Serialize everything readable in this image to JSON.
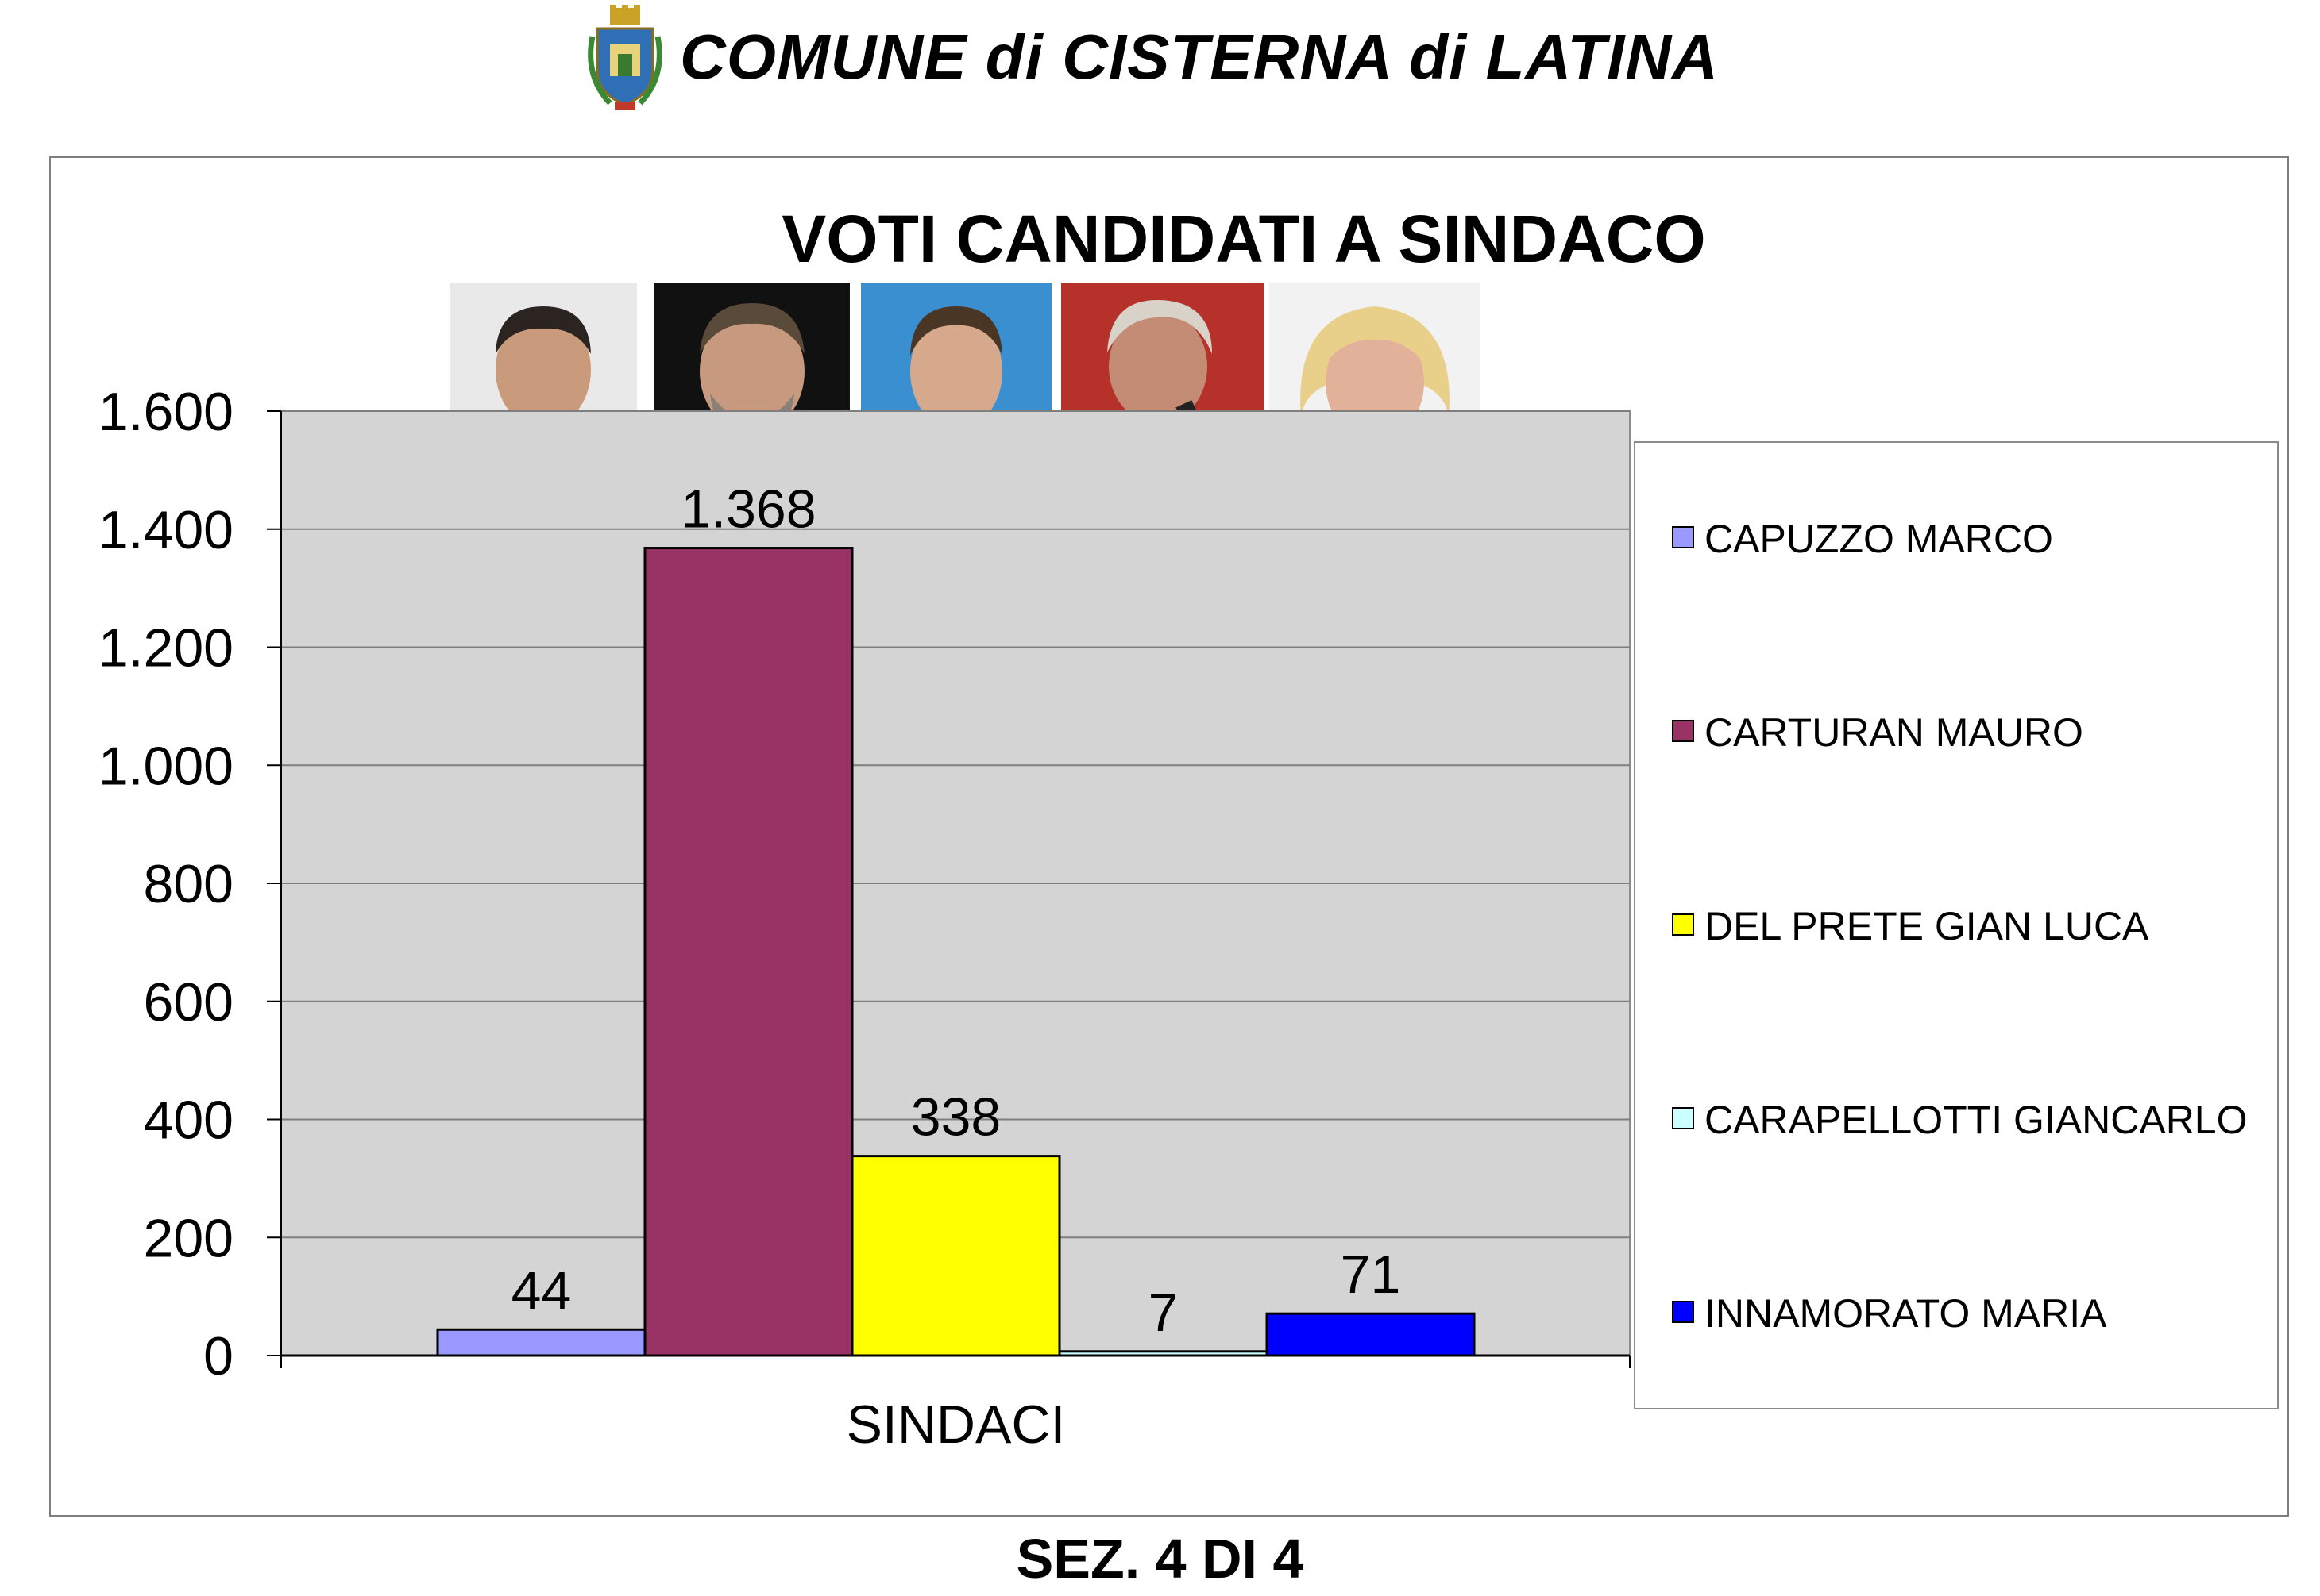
{
  "header": {
    "title": "COMUNE di CISTERNA di LATINA"
  },
  "footer": {
    "label": "SEZ. 4 DI 4"
  },
  "chart_data": {
    "type": "bar",
    "title": "VOTI CANDIDATI A SINDACO",
    "categories": [
      "SINDACI"
    ],
    "xlabel": "",
    "ylabel": "",
    "ylim": [
      0,
      1600
    ],
    "yticks": [
      0,
      200,
      400,
      600,
      800,
      1000,
      1200,
      1400,
      1600
    ],
    "ytick_labels": [
      "0",
      "200",
      "400",
      "600",
      "800",
      "1.000",
      "1.200",
      "1.400",
      "1.600"
    ],
    "grid": true,
    "legend_position": "right",
    "series": [
      {
        "name": "CAPUZZO MARCO",
        "values": [
          44
        ],
        "label": "44",
        "color": "#9999ff"
      },
      {
        "name": "CARTURAN MAURO",
        "values": [
          1368
        ],
        "label": "1.368",
        "color": "#993366"
      },
      {
        "name": "DEL PRETE GIAN LUCA",
        "values": [
          338
        ],
        "label": "338",
        "color": "#ffff00"
      },
      {
        "name": "CARAPELLOTTI GIANCARLO",
        "values": [
          7
        ],
        "label": "7",
        "color": "#ccffff"
      },
      {
        "name": "INNAMORATO MARIA",
        "values": [
          71
        ],
        "label": "71",
        "color": "#0000ff"
      }
    ]
  },
  "colors": {
    "plot_background": "#d4d4d4",
    "gridline": "#7f7f7f"
  }
}
